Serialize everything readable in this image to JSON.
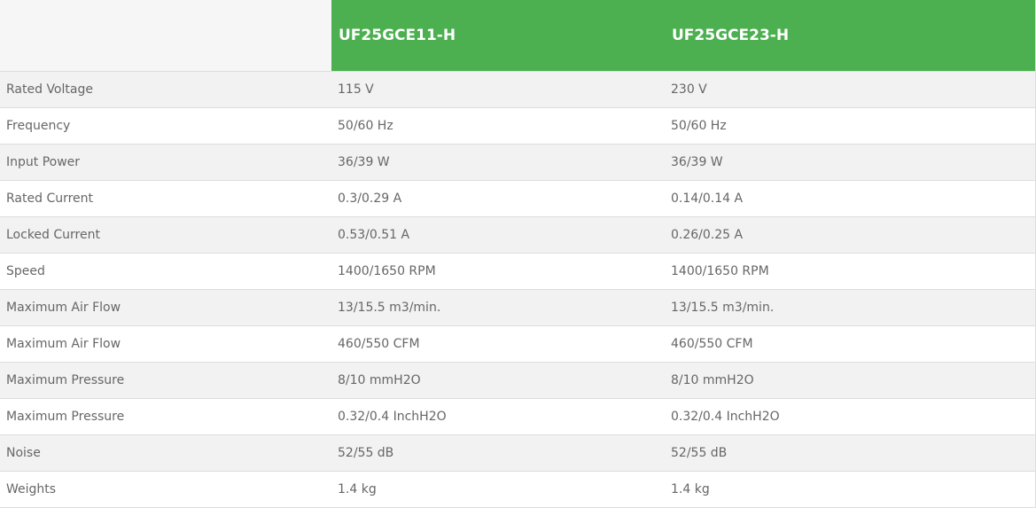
{
  "colors": {
    "header_green": "#4caf50",
    "row_alt": "#f2f2f2",
    "text": "#666666"
  },
  "table": {
    "models": [
      "UF25GCE11-H",
      "UF25GCE23-H"
    ],
    "rows": [
      {
        "label": "Rated Voltage",
        "values": [
          "115 V",
          "230 V"
        ]
      },
      {
        "label": "Frequency",
        "values": [
          "50/60 Hz",
          "50/60 Hz"
        ]
      },
      {
        "label": "Input Power",
        "values": [
          "36/39 W",
          "36/39 W"
        ]
      },
      {
        "label": "Rated Current",
        "values": [
          "0.3/0.29 A",
          "0.14/0.14 A"
        ]
      },
      {
        "label": "Locked Current",
        "values": [
          "0.53/0.51 A",
          "0.26/0.25 A"
        ]
      },
      {
        "label": "Speed",
        "values": [
          "1400/1650 RPM",
          "1400/1650 RPM"
        ]
      },
      {
        "label": "Maximum Air Flow",
        "values": [
          "13/15.5 m3/min.",
          "13/15.5 m3/min."
        ]
      },
      {
        "label": "Maximum Air Flow",
        "values": [
          "460/550 CFM",
          "460/550 CFM"
        ]
      },
      {
        "label": "Maximum Pressure",
        "values": [
          "8/10 mmH2O",
          "8/10 mmH2O"
        ]
      },
      {
        "label": "Maximum Pressure",
        "values": [
          "0.32/0.4 InchH2O",
          "0.32/0.4 InchH2O"
        ]
      },
      {
        "label": "Noise",
        "values": [
          "52/55 dB",
          "52/55 dB"
        ]
      },
      {
        "label": "Weights",
        "values": [
          "1.4 kg",
          "1.4 kg"
        ]
      }
    ]
  }
}
